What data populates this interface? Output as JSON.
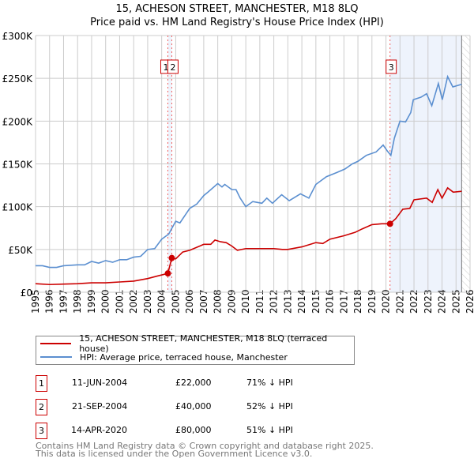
{
  "title": "15, ACHESON STREET, MANCHESTER, M18 8LQ",
  "subtitle": "Price paid vs. HM Land Registry's House Price Index (HPI)",
  "chart_data": {
    "type": "line",
    "title": "15, ACHESON STREET, MANCHESTER, M18 8LQ",
    "subtitle": "Price paid vs. HM Land Registry's House Price Index (HPI)",
    "xlim": [
      1995,
      2026
    ],
    "ylim": [
      0,
      300000
    ],
    "x_ticks": [
      "1995",
      "1996",
      "1997",
      "1998",
      "1999",
      "2000",
      "2001",
      "2002",
      "2003",
      "2004",
      "2005",
      "2006",
      "2007",
      "2008",
      "2009",
      "2010",
      "2011",
      "2012",
      "2013",
      "2014",
      "2015",
      "2016",
      "2017",
      "2018",
      "2019",
      "2020",
      "2021",
      "2022",
      "2023",
      "2024",
      "2025",
      "2026"
    ],
    "y_ticks": [
      {
        "v": 0,
        "label": "£0"
      },
      {
        "v": 50000,
        "label": "£50K"
      },
      {
        "v": 100000,
        "label": "£100K"
      },
      {
        "v": 150000,
        "label": "£150K"
      },
      {
        "v": 200000,
        "label": "£200K"
      },
      {
        "v": 250000,
        "label": "£250K"
      },
      {
        "v": 300000,
        "label": "£300K"
      }
    ],
    "grid": true,
    "shaded_from": 2020.29,
    "data_end": 2025.4,
    "series": [
      {
        "name": "15, ACHESON STREET, MANCHESTER, M18 8LQ (terraced house)",
        "color": "#cc0000",
        "x": [
          1995,
          1996,
          1997,
          1998,
          1999,
          2000,
          2001,
          2002,
          2003,
          2003.7,
          2004.44,
          2004.72,
          2005,
          2005.5,
          2006,
          2007,
          2007.5,
          2007.8,
          2008.2,
          2008.6,
          2009,
          2009.4,
          2010,
          2011,
          2012,
          2012.6,
          2013,
          2014,
          2015,
          2015.5,
          2016,
          2017,
          2017.8,
          2018.3,
          2019,
          2019.7,
          2020.29,
          2020.7,
          2021.2,
          2021.7,
          2022,
          2022.9,
          2023.3,
          2023.7,
          2024,
          2024.4,
          2024.8,
          2025.4
        ],
        "y": [
          10000,
          9000,
          9500,
          10000,
          11000,
          11000,
          12000,
          13000,
          16000,
          19000,
          22000,
          40000,
          39000,
          47000,
          49000,
          56000,
          56000,
          61000,
          59000,
          58000,
          54000,
          49000,
          51000,
          51000,
          51000,
          50000,
          50000,
          53000,
          58000,
          57000,
          62000,
          66000,
          70000,
          74000,
          79000,
          80000,
          80000,
          86000,
          97000,
          98000,
          108000,
          110000,
          105000,
          120000,
          110000,
          122000,
          117000,
          118000
        ]
      },
      {
        "name": "HPI: Average price, terraced house, Manchester",
        "color": "#5b8fd0",
        "x": [
          1995,
          1995.5,
          1996,
          1996.5,
          1997,
          1998,
          1998.5,
          1999,
          1999.5,
          2000,
          2000.5,
          2001,
          2001.5,
          2002,
          2002.5,
          2003,
          2003.5,
          2004,
          2004.5,
          2005,
          2005.3,
          2006,
          2006.5,
          2007,
          2007.3,
          2008,
          2008.3,
          2008.5,
          2009,
          2009.3,
          2009.6,
          2010,
          2010.5,
          2011.15,
          2011.5,
          2011.9,
          2012.56,
          2013.1,
          2013.9,
          2014.5,
          2015,
          2015.75,
          2016.5,
          2017.07,
          2017.6,
          2018,
          2018.6,
          2019.3,
          2019.8,
          2020.1,
          2020.35,
          2020.6,
          2021,
          2021.4,
          2021.77,
          2021.95,
          2022.5,
          2022.9,
          2023.27,
          2023.74,
          2024.02,
          2024.4,
          2024.77,
          2025.4
        ],
        "y": [
          31000,
          31000,
          29000,
          29000,
          31000,
          32000,
          32000,
          36000,
          34000,
          37000,
          35000,
          38000,
          38000,
          41000,
          42000,
          50000,
          51000,
          62000,
          68000,
          83000,
          81000,
          98000,
          103000,
          113000,
          117000,
          127000,
          123000,
          126000,
          120000,
          120000,
          110000,
          100000,
          106000,
          104000,
          110000,
          104000,
          114000,
          107000,
          115000,
          110000,
          126000,
          135000,
          140000,
          144000,
          150000,
          153000,
          160000,
          164000,
          172000,
          165000,
          160000,
          180000,
          200000,
          199000,
          210000,
          225000,
          228000,
          232000,
          218000,
          244000,
          225000,
          252000,
          240000,
          243000
        ]
      }
    ],
    "annotations": [
      {
        "label": "1",
        "x": 2004.44,
        "y": 22000
      },
      {
        "label": "2",
        "x": 2004.72,
        "y": 40000
      },
      {
        "label": "3",
        "x": 2020.29,
        "y": 80000
      }
    ]
  },
  "legend": {
    "items": [
      "15, ACHESON STREET, MANCHESTER, M18 8LQ (terraced house)",
      "HPI: Average price, terraced house, Manchester"
    ]
  },
  "sales": [
    {
      "num": "1",
      "date": "11-JUN-2004",
      "price": "£22,000",
      "hpi": "71% ↓ HPI"
    },
    {
      "num": "2",
      "date": "21-SEP-2004",
      "price": "£40,000",
      "hpi": "52% ↓ HPI"
    },
    {
      "num": "3",
      "date": "14-APR-2020",
      "price": "£80,000",
      "hpi": "51% ↓ HPI"
    }
  ],
  "footer": {
    "line1": "Contains HM Land Registry data © Crown copyright and database right 2025.",
    "line2": "This data is licensed under the Open Government Licence v3.0."
  }
}
